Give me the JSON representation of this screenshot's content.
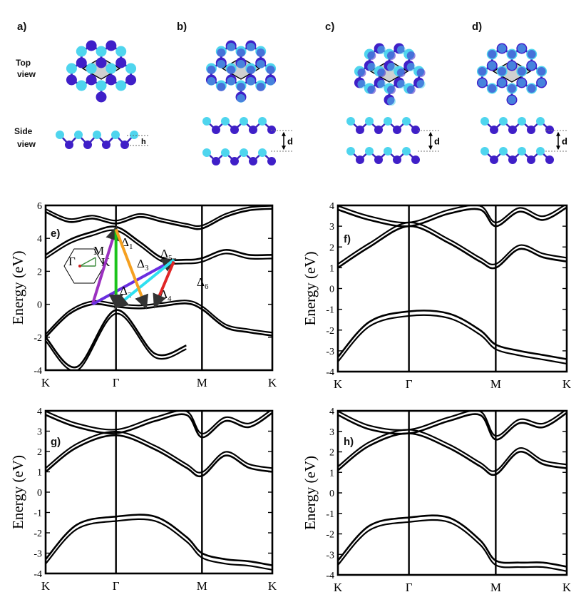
{
  "panel_labels": {
    "a": "a)",
    "b": "b)",
    "c": "c)",
    "d": "d)",
    "e": "e)",
    "f": "f)",
    "g": "g)",
    "h": "h)"
  },
  "view_labels": {
    "top1": "Top",
    "top2": "view",
    "side1": "Side",
    "side2": "view"
  },
  "dim_labels": {
    "h": "h",
    "d": "d"
  },
  "colors": {
    "atom_light": "#4fd5ee",
    "atom_dark": "#3f1fc8",
    "bond_light": "#39c1e0",
    "bond_dark": "#3a22b8",
    "cell_fill": "#c8c8c8",
    "band": "#000000"
  },
  "bz_inset": {
    "gamma": "Γ",
    "m": "M",
    "k": "K"
  },
  "transitions": [
    {
      "label": "Δ",
      "sub": "1",
      "color": "#9b30c0"
    },
    {
      "label": "Δ",
      "sub": "2",
      "color": "#6a2ee0"
    },
    {
      "label": "Δ",
      "sub": "3",
      "color": "#1bc41b"
    },
    {
      "label": "Δ",
      "sub": "4",
      "color": "#2fe0f0"
    },
    {
      "label": "Δ",
      "sub": "5",
      "color": "#f5a020"
    },
    {
      "label": "Δ",
      "sub": "6",
      "color": "#e02525"
    }
  ],
  "chart_data": [
    {
      "panel": "e",
      "type": "line",
      "ylabel": "Energy (eV)",
      "ylim": [
        -4,
        6
      ],
      "yticks": [
        "-4",
        "-2",
        "0",
        "2",
        "4",
        "6"
      ],
      "xticks": [
        "K",
        "Γ",
        "M",
        "K"
      ],
      "series": [
        {
          "x": [
            0,
            0.15,
            0.3,
            0.45,
            0.6,
            0.75,
            0.9,
            1.0,
            1.15,
            1.3,
            1.45
          ],
          "y": [
            -2.0,
            -0.6,
            0.0,
            -0.15,
            -0.25,
            -0.1,
            0.05,
            -0.3,
            -1.4,
            -1.7,
            -1.9
          ]
        },
        {
          "x": [
            0,
            0.15,
            0.3,
            0.45,
            0.6,
            0.75,
            0.9,
            1.0,
            1.15,
            1.3,
            1.45
          ],
          "y": [
            3.0,
            3.9,
            4.4,
            4.7,
            3.8,
            2.8,
            2.7,
            2.8,
            3.3,
            3.0,
            3.0
          ]
        },
        {
          "x": [
            0,
            0.15,
            0.3,
            0.45,
            0.6,
            0.75,
            0.9,
            1.0,
            1.15,
            1.3,
            1.45
          ],
          "y": [
            5.6,
            5.0,
            5.2,
            4.9,
            5.3,
            5.0,
            4.7,
            4.6,
            5.3,
            5.7,
            5.8
          ]
        },
        {
          "x": [
            0,
            0.2,
            0.45,
            0.7,
            0.9
          ],
          "y": [
            -2.0,
            -3.8,
            -0.35,
            -3.0,
            -2.5
          ]
        }
      ]
    },
    {
      "panel": "f",
      "type": "line",
      "ylabel": "Energy (eV)",
      "ylim": [
        -4,
        4
      ],
      "yticks": [
        "-4",
        "-3",
        "-2",
        "-1",
        "0",
        "1",
        "2",
        "3",
        "4"
      ],
      "xticks": [
        "K",
        "Γ",
        "M",
        "K"
      ],
      "series": [
        {
          "x": [
            0,
            0.2,
            0.45,
            0.7,
            0.9,
            1.0,
            1.15,
            1.3,
            1.45
          ],
          "y": [
            1.0,
            2.0,
            3.0,
            2.2,
            1.3,
            1.0,
            1.9,
            1.5,
            1.3
          ]
        },
        {
          "x": [
            0,
            0.2,
            0.45,
            0.7,
            0.9,
            1.0,
            1.15,
            1.3,
            1.45
          ],
          "y": [
            -3.3,
            -1.6,
            -1.1,
            -1.2,
            -2.0,
            -2.7,
            -3.0,
            -3.2,
            -3.4
          ]
        },
        {
          "x": [
            0,
            0.2,
            0.45,
            0.7,
            0.9,
            1.0,
            1.15,
            1.3,
            1.45
          ],
          "y": [
            3.8,
            3.3,
            3.0,
            3.6,
            3.8,
            3.0,
            3.7,
            3.3,
            3.9
          ]
        }
      ]
    },
    {
      "panel": "g",
      "type": "line",
      "ylabel": "Energy (eV)",
      "ylim": [
        -4,
        4
      ],
      "yticks": [
        "-4",
        "-3",
        "-2",
        "-1",
        "0",
        "1",
        "2",
        "3",
        "4"
      ],
      "xticks": [
        "K",
        "Γ",
        "M",
        "K"
      ],
      "series": [
        {
          "x": [
            0,
            0.2,
            0.45,
            0.7,
            0.9,
            1.0,
            1.15,
            1.3,
            1.45
          ],
          "y": [
            1.0,
            2.2,
            2.8,
            2.1,
            1.2,
            0.8,
            1.8,
            1.2,
            1.0
          ]
        },
        {
          "x": [
            0,
            0.2,
            0.45,
            0.7,
            0.9,
            1.0,
            1.15,
            1.3,
            1.45
          ],
          "y": [
            -3.3,
            -1.6,
            -1.2,
            -1.2,
            -2.2,
            -3.0,
            -3.3,
            -3.4,
            -3.6
          ]
        },
        {
          "x": [
            0,
            0.2,
            0.45,
            0.7,
            0.9,
            1.0,
            1.15,
            1.3,
            1.45
          ],
          "y": [
            3.8,
            3.2,
            2.9,
            3.5,
            3.8,
            2.7,
            3.5,
            3.2,
            3.9
          ]
        }
      ]
    },
    {
      "panel": "h",
      "type": "line",
      "ylabel": "Energy (eV)",
      "ylim": [
        -4,
        4
      ],
      "yticks": [
        "-4",
        "-3",
        "-2",
        "-1",
        "0",
        "1",
        "2",
        "3",
        "4"
      ],
      "xticks": [
        "K",
        "Γ",
        "M",
        "K"
      ],
      "series": [
        {
          "x": [
            0,
            0.2,
            0.45,
            0.7,
            0.9,
            1.0,
            1.15,
            1.3,
            1.45
          ],
          "y": [
            1.1,
            2.3,
            2.9,
            2.2,
            1.3,
            0.9,
            2.0,
            1.4,
            1.2
          ]
        },
        {
          "x": [
            0,
            0.2,
            0.45,
            0.7,
            0.9,
            1.0,
            1.15,
            1.3,
            1.45
          ],
          "y": [
            -3.3,
            -1.6,
            -1.2,
            -1.2,
            -2.3,
            -3.3,
            -3.4,
            -3.4,
            -3.6
          ]
        },
        {
          "x": [
            0,
            0.2,
            0.45,
            0.7,
            0.9,
            1.0,
            1.15,
            1.3,
            1.45
          ],
          "y": [
            3.8,
            3.1,
            2.9,
            3.5,
            3.8,
            2.6,
            3.4,
            3.2,
            3.9
          ]
        }
      ]
    }
  ]
}
